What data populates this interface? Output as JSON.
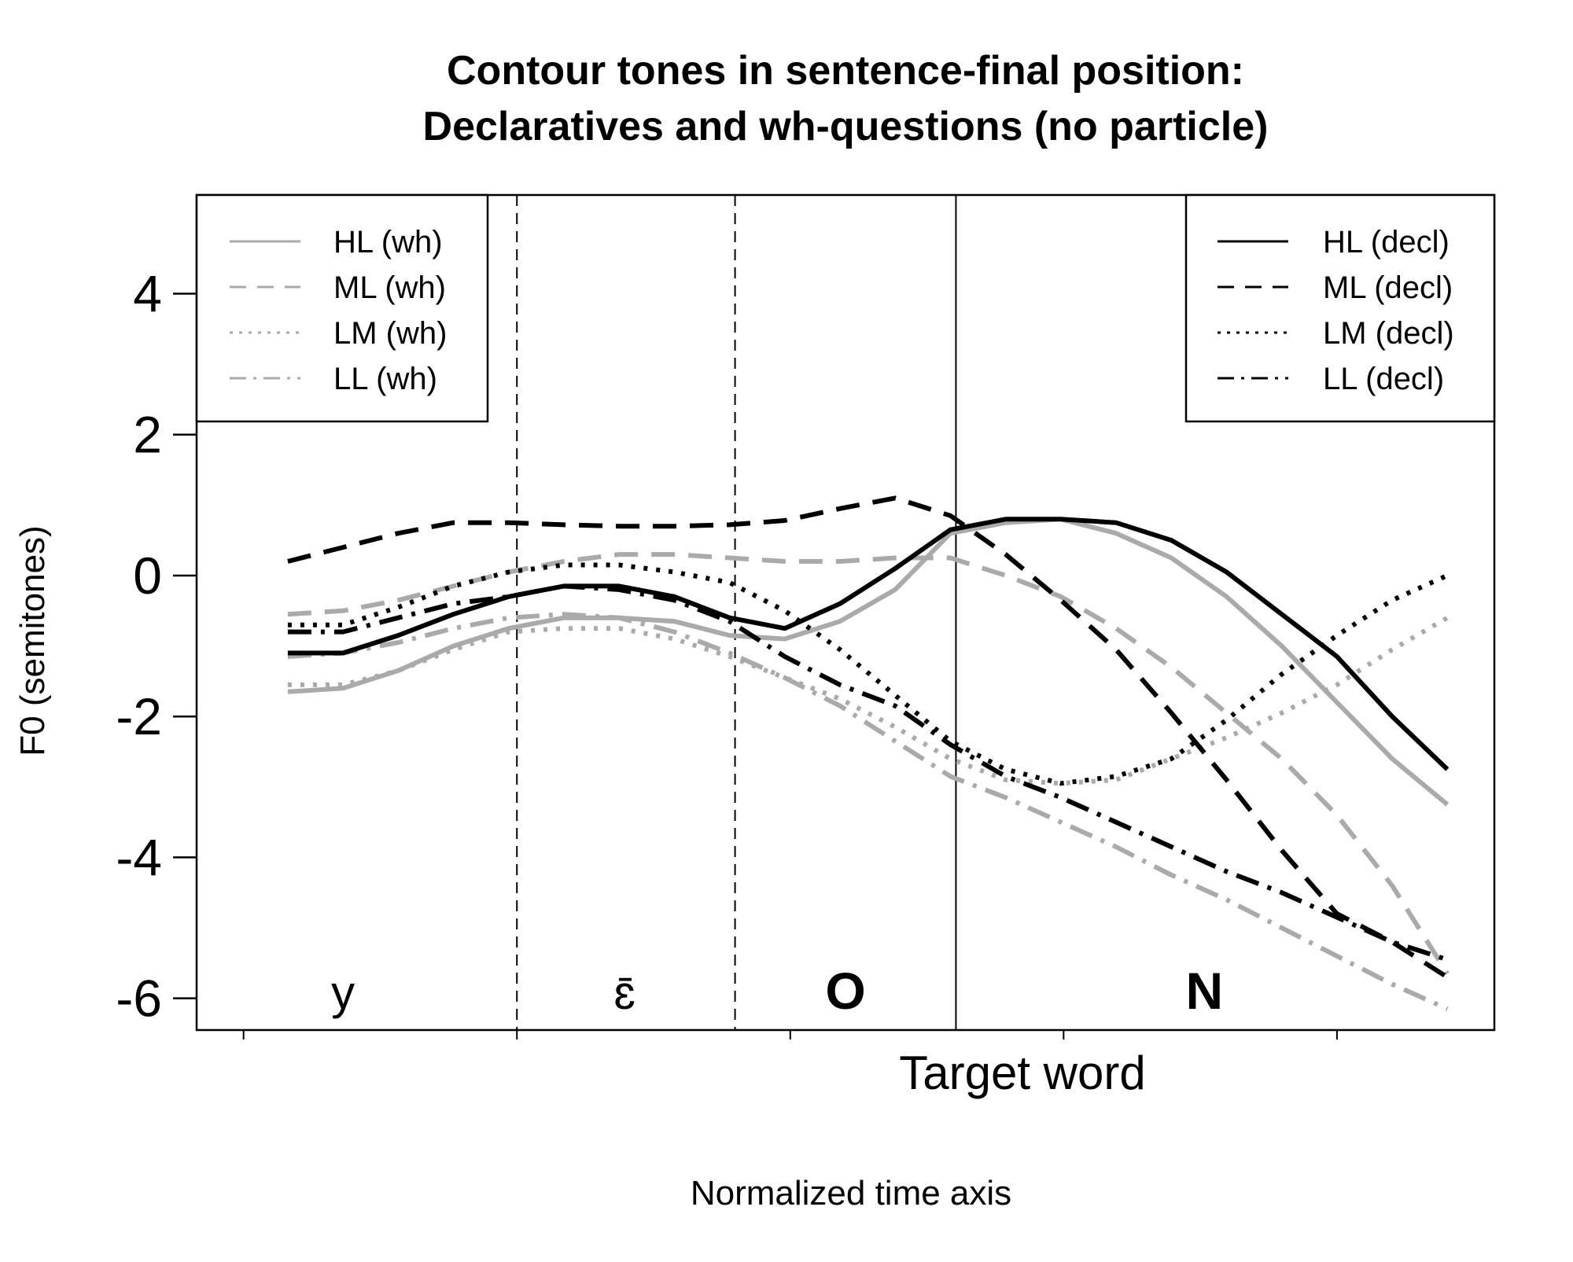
{
  "chart_data": {
    "type": "line",
    "title": "Contour tones in sentence-final position:",
    "subtitle": "Declaratives and wh-questions (no particle)",
    "xlabel": "Normalized time axis",
    "ylabel": "F0 (semitones)",
    "x_annotation": "Target word",
    "ylim": [
      -6.45,
      5.4
    ],
    "xlim": [
      0.35,
      23.85
    ],
    "yticks": [
      -6,
      -4,
      -2,
      0,
      2,
      4
    ],
    "ytick_labels": [
      "-6",
      "-4",
      "-2",
      "0",
      "2",
      "4"
    ],
    "xticks": [
      1.2,
      6.15,
      11.1,
      16.05,
      21.0
    ],
    "segment_boundaries": {
      "dashed": [
        6.15,
        10.1
      ],
      "solid": [
        14.1
      ]
    },
    "segments": [
      {
        "label": "y",
        "x": 3.0,
        "bold": false
      },
      {
        "label": "ɛ̄",
        "x": 8.1,
        "bold": false
      },
      {
        "label": "O",
        "x": 12.1,
        "bold": true
      },
      {
        "label": "N",
        "x": 18.6,
        "bold": true
      }
    ],
    "legend_left_position": "top-left",
    "legend_right_position": "top-right",
    "x": [
      2,
      3,
      4,
      5,
      6,
      7,
      8,
      9,
      10,
      11,
      12,
      13,
      14,
      15,
      16,
      17,
      18,
      19,
      20,
      21,
      22,
      23
    ],
    "series": [
      {
        "name": "HL (wh)",
        "color": "#aaaaaa",
        "dash": "solid",
        "values": [
          -1.65,
          -1.6,
          -1.35,
          -1.0,
          -0.75,
          -0.6,
          -0.6,
          -0.65,
          -0.85,
          -0.9,
          -0.65,
          -0.2,
          0.6,
          0.75,
          0.8,
          0.6,
          0.25,
          -0.3,
          -1.0,
          -1.8,
          -2.6,
          -3.25
        ]
      },
      {
        "name": "ML (wh)",
        "color": "#aaaaaa",
        "dash": "dashed",
        "values": [
          -0.55,
          -0.5,
          -0.35,
          -0.15,
          0.05,
          0.2,
          0.3,
          0.3,
          0.25,
          0.2,
          0.2,
          0.25,
          0.25,
          0.0,
          -0.3,
          -0.75,
          -1.3,
          -1.95,
          -2.6,
          -3.4,
          -4.4,
          -5.65
        ]
      },
      {
        "name": "LM (wh)",
        "color": "#aaaaaa",
        "dash": "dotted",
        "values": [
          -1.55,
          -1.55,
          -1.35,
          -1.05,
          -0.8,
          -0.75,
          -0.75,
          -0.9,
          -1.15,
          -1.45,
          -1.75,
          -2.15,
          -2.6,
          -2.9,
          -2.95,
          -2.9,
          -2.6,
          -2.3,
          -1.95,
          -1.55,
          -1.05,
          -0.6
        ]
      },
      {
        "name": "LL (wh)",
        "color": "#aaaaaa",
        "dash": "dashdot",
        "values": [
          -1.15,
          -1.1,
          -0.95,
          -0.75,
          -0.6,
          -0.55,
          -0.6,
          -0.8,
          -1.1,
          -1.45,
          -1.85,
          -2.35,
          -2.85,
          -3.15,
          -3.5,
          -3.85,
          -4.25,
          -4.6,
          -5.0,
          -5.4,
          -5.8,
          -6.15
        ]
      },
      {
        "name": "HL (decl)",
        "color": "#000000",
        "dash": "solid",
        "values": [
          -1.1,
          -1.1,
          -0.85,
          -0.55,
          -0.3,
          -0.15,
          -0.15,
          -0.3,
          -0.6,
          -0.75,
          -0.4,
          0.1,
          0.65,
          0.8,
          0.8,
          0.75,
          0.5,
          0.05,
          -0.55,
          -1.15,
          -2.0,
          -2.75
        ]
      },
      {
        "name": "ML (decl)",
        "color": "#000000",
        "dash": "dashed",
        "values": [
          0.2,
          0.4,
          0.6,
          0.75,
          0.75,
          0.72,
          0.7,
          0.7,
          0.72,
          0.78,
          0.95,
          1.1,
          0.85,
          0.3,
          -0.35,
          -1.05,
          -1.95,
          -2.9,
          -3.9,
          -4.8,
          -5.2,
          -5.7
        ]
      },
      {
        "name": "LM (decl)",
        "color": "#000000",
        "dash": "dotted",
        "values": [
          -0.7,
          -0.7,
          -0.45,
          -0.15,
          0.05,
          0.15,
          0.15,
          0.05,
          -0.1,
          -0.5,
          -1.05,
          -1.7,
          -2.35,
          -2.75,
          -2.95,
          -2.85,
          -2.6,
          -2.05,
          -1.4,
          -0.85,
          -0.35,
          0.0
        ]
      },
      {
        "name": "LL (decl)",
        "color": "#000000",
        "dash": "dashdot",
        "values": [
          -0.8,
          -0.8,
          -0.6,
          -0.4,
          -0.3,
          -0.15,
          -0.2,
          -0.35,
          -0.65,
          -1.15,
          -1.55,
          -1.85,
          -2.4,
          -2.85,
          -3.15,
          -3.5,
          -3.85,
          -4.2,
          -4.5,
          -4.85,
          -5.2,
          -5.45
        ]
      }
    ]
  }
}
